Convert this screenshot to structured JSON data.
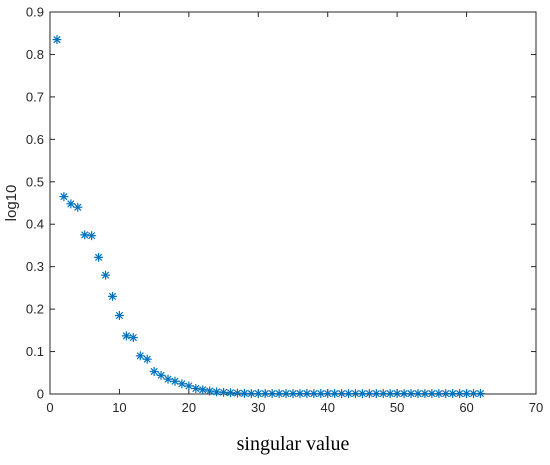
{
  "chart_data": {
    "type": "scatter",
    "title": "",
    "xlabel": "singular value",
    "ylabel": "log10",
    "xlim": [
      0,
      70
    ],
    "ylim": [
      0,
      0.9
    ],
    "x_ticks": [
      0,
      10,
      20,
      30,
      40,
      50,
      60,
      70
    ],
    "y_ticks": [
      0,
      0.1,
      0.2,
      0.3,
      0.4,
      0.5,
      0.6,
      0.7,
      0.8,
      0.9
    ],
    "x_tick_labels": [
      "0",
      "10",
      "20",
      "30",
      "40",
      "50",
      "60",
      "70"
    ],
    "y_tick_labels": [
      "0",
      "0.1",
      "0.2",
      "0.3",
      "0.4",
      "0.5",
      "0.6",
      "0.7",
      "0.8",
      "0.9"
    ],
    "grid": false,
    "marker": "*",
    "color": "#0072BD",
    "series": [
      {
        "x": [
          1,
          2,
          3,
          4,
          5,
          6,
          7,
          8,
          9,
          10,
          11,
          12,
          13,
          14,
          15,
          16,
          17,
          18,
          19,
          20,
          21,
          22,
          23,
          24,
          25,
          26,
          27,
          28,
          29,
          30,
          31,
          32,
          33,
          34,
          35,
          36,
          37,
          38,
          39,
          40,
          41,
          42,
          43,
          44,
          45,
          46,
          47,
          48,
          49,
          50,
          51,
          52,
          53,
          54,
          55,
          56,
          57,
          58,
          59,
          60,
          61,
          62
        ],
        "y": [
          0.835,
          0.465,
          0.448,
          0.44,
          0.375,
          0.373,
          0.322,
          0.28,
          0.23,
          0.185,
          0.137,
          0.133,
          0.09,
          0.082,
          0.053,
          0.044,
          0.035,
          0.03,
          0.024,
          0.019,
          0.013,
          0.01,
          0.007,
          0.005,
          0.004,
          0.003,
          0.002,
          0.0015,
          0.001,
          0.001,
          0.001,
          0.001,
          0.001,
          0.001,
          0.001,
          0.001,
          0.001,
          0.001,
          0.001,
          0.001,
          0.001,
          0.001,
          0.001,
          0.001,
          0.001,
          0.001,
          0.001,
          0.001,
          0.001,
          0.001,
          0.001,
          0.001,
          0.001,
          0.001,
          0.001,
          0.001,
          0.001,
          0.001,
          0.001,
          0.001,
          0.001,
          0.001
        ]
      }
    ]
  }
}
